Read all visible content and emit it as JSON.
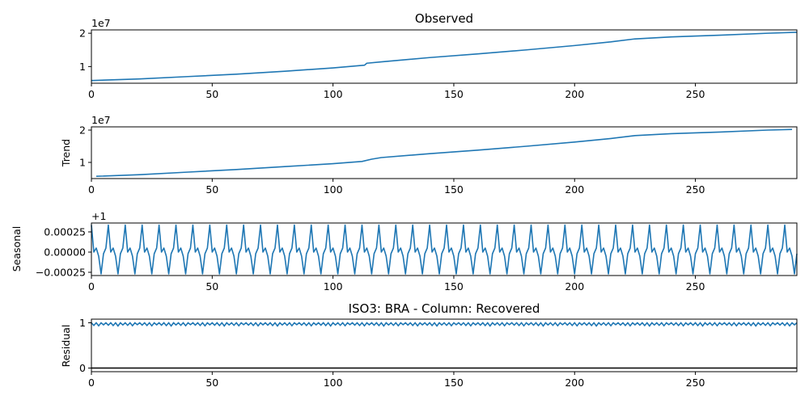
{
  "chart_data": [
    {
      "type": "line",
      "title": "Observed",
      "ylabel": "",
      "offset_text": "1e7",
      "xlim": [
        0,
        292
      ],
      "ylim": [
        5000000,
        21000000
      ],
      "x_ticks": [
        0,
        50,
        100,
        150,
        200,
        250
      ],
      "x_tick_labels": [
        "0",
        "50",
        "100",
        "150",
        "200",
        "250"
      ],
      "y_ticks": [
        10000000,
        20000000
      ],
      "y_tick_labels": [
        "1",
        "2"
      ],
      "series": [
        {
          "x": [
            0,
            20,
            40,
            60,
            80,
            100,
            113,
            114,
            120,
            140,
            160,
            180,
            200,
            215,
            225,
            240,
            260,
            280,
            292
          ],
          "values": [
            5800000,
            6300000,
            7000000,
            7700000,
            8600000,
            9600000,
            10400000,
            11000000,
            11400000,
            12700000,
            13800000,
            15000000,
            16300000,
            17400000,
            18300000,
            18900000,
            19400000,
            20000000,
            20300000
          ]
        }
      ]
    },
    {
      "type": "line",
      "title": "",
      "ylabel": "Trend",
      "offset_text": "1e7",
      "xlim": [
        0,
        292
      ],
      "ylim": [
        5000000,
        21000000
      ],
      "x_ticks": [
        0,
        50,
        100,
        150,
        200,
        250
      ],
      "x_tick_labels": [
        "0",
        "50",
        "100",
        "150",
        "200",
        "250"
      ],
      "y_ticks": [
        10000000,
        20000000
      ],
      "y_tick_labels": [
        "1",
        "2"
      ],
      "series": [
        {
          "x": [
            2,
            20,
            40,
            60,
            80,
            100,
            112,
            116,
            120,
            140,
            160,
            180,
            200,
            215,
            225,
            240,
            260,
            280,
            290
          ],
          "values": [
            5700000,
            6200000,
            7000000,
            7800000,
            8700000,
            9600000,
            10300000,
            11000000,
            11500000,
            12700000,
            13800000,
            15000000,
            16300000,
            17400000,
            18300000,
            18900000,
            19400000,
            20000000,
            20200000
          ]
        }
      ]
    },
    {
      "type": "line",
      "title": "",
      "ylabel": "Seasonal",
      "offset_text": "+1",
      "xlim": [
        0,
        292
      ],
      "ylim": [
        -0.00029,
        0.00036
      ],
      "x_ticks": [
        0,
        50,
        100,
        150,
        200,
        250
      ],
      "x_tick_labels": [
        "0",
        "50",
        "100",
        "150",
        "200",
        "250"
      ],
      "y_ticks": [
        -0.00025,
        0.0,
        0.00025
      ],
      "y_tick_labels": [
        "−0.00025",
        "0.00000",
        "0.00025"
      ],
      "period": 7,
      "cycle_values": [
        0.000335,
        0.0,
        5e-05,
        -5e-05,
        -0.00027,
        -2e-05,
        5e-05
      ]
    },
    {
      "type": "line",
      "title": "ISO3: BRA - Column: Recovered",
      "ylabel": "Residual",
      "offset_text": "",
      "xlim": [
        0,
        292
      ],
      "ylim": [
        -0.08,
        1.08
      ],
      "x_ticks": [
        0,
        50,
        100,
        150,
        200,
        250
      ],
      "x_tick_labels": [
        "0",
        "50",
        "100",
        "150",
        "200",
        "250"
      ],
      "y_ticks": [
        0,
        1
      ],
      "y_tick_labels": [
        "0",
        "1"
      ],
      "band_low": 0.93,
      "band_high": 1.0,
      "baseline": 0
    }
  ]
}
